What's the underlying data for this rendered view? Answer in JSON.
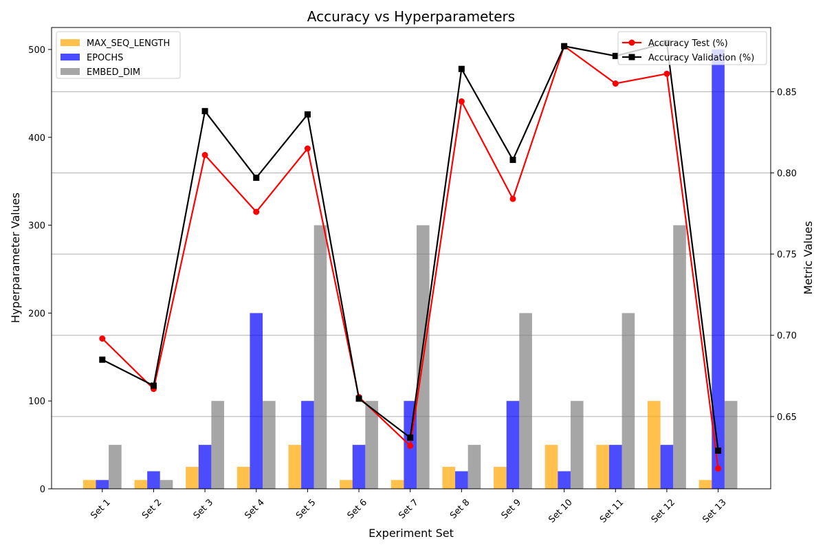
{
  "chart_data": {
    "type": "bar",
    "title": "Accuracy vs Hyperparameters",
    "xlabel": "Experiment Set",
    "ylabel": "Hyperparameter Values",
    "y2label": "Metric Values",
    "categories": [
      "Set 1",
      "Set 2",
      "Set 3",
      "Set 4",
      "Set 5",
      "Set 6",
      "Set 7",
      "Set 8",
      "Set 9",
      "Set 10",
      "Set 11",
      "Set 12",
      "Set 13"
    ],
    "ylim": [
      0,
      525
    ],
    "y_ticks": [
      0,
      100,
      200,
      300,
      400,
      500
    ],
    "y2lim": [
      0.6055,
      0.8895
    ],
    "y2_ticks": [
      0.65,
      0.7,
      0.75,
      0.8,
      0.85
    ],
    "y2_tick_labels": [
      "0.65",
      "0.70",
      "0.75",
      "0.80",
      "0.85"
    ],
    "grid": "right-axis horizontal gridlines",
    "bar_series": [
      {
        "name": "MAX_SEQ_LENGTH",
        "color": "#FFA500",
        "values": [
          10,
          10,
          25,
          25,
          50,
          10,
          10,
          25,
          25,
          50,
          50,
          100,
          10
        ]
      },
      {
        "name": "EPOCHS",
        "color": "#0000FF",
        "values": [
          10,
          20,
          50,
          200,
          100,
          50,
          100,
          20,
          100,
          20,
          50,
          50,
          500
        ]
      },
      {
        "name": "EMBED_DIM",
        "color": "#808080",
        "values": [
          50,
          10,
          100,
          100,
          300,
          100,
          300,
          50,
          200,
          100,
          200,
          300,
          100
        ]
      }
    ],
    "line_series": [
      {
        "name": "Accuracy Test (%)",
        "color": "#FF0000",
        "marker": "circle",
        "values": [
          0.698,
          0.667,
          0.811,
          0.776,
          0.815,
          0.662,
          0.632,
          0.844,
          0.784,
          0.878,
          0.855,
          0.861,
          0.618
        ]
      },
      {
        "name": "Accuracy Validation (%)",
        "color": "#000000",
        "marker": "square",
        "values": [
          0.685,
          0.669,
          0.838,
          0.797,
          0.836,
          0.661,
          0.637,
          0.864,
          0.808,
          0.878,
          0.872,
          0.88,
          0.629
        ]
      }
    ],
    "legend_left_position": "upper-left",
    "legend_right_position": "upper-right"
  }
}
